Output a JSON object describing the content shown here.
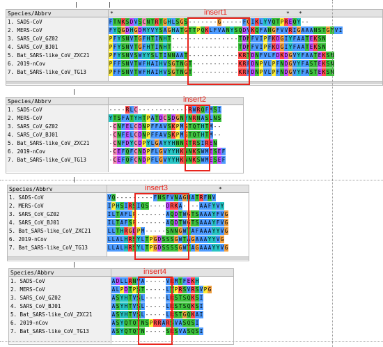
{
  "header_label": "Species/Abbrv",
  "species": [
    "1. SADS-CoV",
    "2. MERS-CoV",
    "3. SARS_CoV_GZ02",
    "4. SARS_CoV_BJ01",
    "5. Bat_SARS-like_CoV_ZXC21",
    "6. 2019-nCov",
    "7. Bat_SARS-like_CoV_TG13"
  ],
  "colors": {
    "A": "#4d9bff",
    "V": "#4d9bff",
    "L": "#4d9bff",
    "I": "#4d9bff",
    "M": "#4d9bff",
    "F": "#4d9bff",
    "W": "#4d9bff",
    "C": "#f08ab4",
    "K": "#ff4b4b",
    "R": "#ff4b4b",
    "E": "#c24bff",
    "D": "#c24bff",
    "N": "#3ec33e",
    "Q": "#3ec33e",
    "S": "#3ec33e",
    "T": "#3ec33e",
    "G": "#f2a040",
    "P": "#ffee33",
    "H": "#27c4c4",
    "Y": "#27c4c4",
    "-": "#ffffff",
    "default": "#ffffff",
    "insert_red": "#e8241c"
  },
  "panels": [
    {
      "label": "insert1",
      "sequences": [
        "FTNKSDVSCNTRTGHLSGS-------G-----FGIKLYVQTPREQY--",
        "FYQGDHGDMYVYSAGHATGTTPQKLFVANYSQDVKQFANGFVVRIGAAANSTGTVI",
        "PFYSNVTGFHTINHT----------------TDNFVIPFKDGIYFAATEKSN",
        "PFYSNVTGFHTINHT----------------TDNFVIPFKDGIYFAATEKSN",
        "PFYSNVSWYYSLTINNAAT------------KRTDNFVLFDKDGVYFAATEKSN",
        "PFFSNVTWFHAIHVSGTNGT-----------KRFDNPVLPFNDGVYFASTEKSN",
        "PFFSNVTWFHAIHVSGTNGT-----------KRFDNPVLPFNDGVYFASTEKSN"
      ]
    },
    {
      "label": "insert2",
      "sequences": [
        "----RLC------------RWRQFMSI",
        "YTSFATYHTPATDCSDGNYNRNASLNS",
        "-CNFELCDNPFFAVSKPMGTQTHTM--",
        "-CNFELCDNPFFAVSKPMGTQTHTM--",
        "-CNFDYCDPYLGAYYHNNKTRSIREN",
        "-CEFQFCNDPFLGVYYHKNNKSWMESEF",
        "-CEFQFCNDPFLGVYYHKNNKSWMESEF"
      ]
    },
    {
      "label": "insert3",
      "sequences": [
        "VQ---------FNSFVNAGHATRFNV",
        "IPHSIRSIQS----DRKA----AAFYVY",
        "ILTAFLP-------AQDTWGTSAAAYFVG",
        "ILTAFSP-------AQDTWGTSAAAYFVG",
        "LLTHRGDPM-----SNNGWTAFAAAYYVG",
        "LLALHRSYLTPGDSSSGWTAGAAAYYVG",
        "LLALHRSYLTPGDSSSSGWTAGAAAYYVG"
      ]
    },
    {
      "label": "insert4",
      "sequences": [
        "ADLLRNVA-----VRMTFEKH",
        "ALPDTPST-----LTPRSVRSVPG",
        "ASYHTVSL-----LRSTSQKSI",
        "ASYHTVSL-----LRSTSQKSI",
        "ASYHTVSL-----LRSTGQKAI",
        "ASYQTQTNSPRRARSVASQSI",
        "ASYQTQTN-----SRSVASQSI"
      ]
    }
  ]
}
